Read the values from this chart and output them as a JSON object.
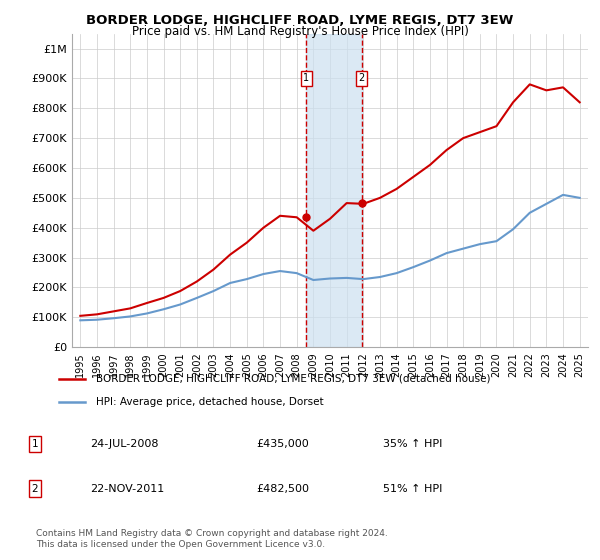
{
  "title": "BORDER LODGE, HIGHCLIFF ROAD, LYME REGIS, DT7 3EW",
  "subtitle": "Price paid vs. HM Land Registry's House Price Index (HPI)",
  "legend_line1": "BORDER LODGE, HIGHCLIFF ROAD, LYME REGIS, DT7 3EW (detached house)",
  "legend_line2": "HPI: Average price, detached house, Dorset",
  "footnote": "Contains HM Land Registry data © Crown copyright and database right 2024.\nThis data is licensed under the Open Government Licence v3.0.",
  "table": [
    {
      "num": "1",
      "date": "24-JUL-2008",
      "price": "£435,000",
      "hpi": "35% ↑ HPI"
    },
    {
      "num": "2",
      "date": "22-NOV-2011",
      "price": "£482,500",
      "hpi": "51% ↑ HPI"
    }
  ],
  "sale1_year": 2008.56,
  "sale1_price": 435000,
  "sale2_year": 2011.9,
  "sale2_price": 482500,
  "red_color": "#cc0000",
  "blue_color": "#6699cc",
  "shade_color": "#cce0f0",
  "vline_color": "#cc0000",
  "grid_color": "#cccccc",
  "ylim": [
    0,
    1050000
  ],
  "xlim_start": 1994.5,
  "xlim_end": 2025.5,
  "hpi_years": [
    1995,
    1996,
    1997,
    1998,
    1999,
    2000,
    2001,
    2002,
    2003,
    2004,
    2005,
    2006,
    2007,
    2008,
    2009,
    2010,
    2011,
    2012,
    2013,
    2014,
    2015,
    2016,
    2017,
    2018,
    2019,
    2020,
    2021,
    2022,
    2023,
    2024,
    2025
  ],
  "hpi_values": [
    90000,
    92000,
    97000,
    103000,
    113000,
    127000,
    143000,
    165000,
    188000,
    215000,
    228000,
    245000,
    255000,
    248000,
    225000,
    230000,
    232000,
    228000,
    235000,
    248000,
    268000,
    290000,
    315000,
    330000,
    345000,
    355000,
    395000,
    450000,
    480000,
    510000,
    500000
  ],
  "red_years": [
    1995,
    1996,
    1997,
    1998,
    1999,
    2000,
    2001,
    2002,
    2003,
    2004,
    2005,
    2006,
    2007,
    2008,
    2009,
    2010,
    2011,
    2012,
    2013,
    2014,
    2015,
    2016,
    2017,
    2018,
    2019,
    2020,
    2021,
    2022,
    2023,
    2024,
    2025
  ],
  "red_values": [
    105000,
    110000,
    120000,
    130000,
    148000,
    165000,
    188000,
    220000,
    260000,
    310000,
    350000,
    400000,
    440000,
    435000,
    390000,
    430000,
    482500,
    480000,
    500000,
    530000,
    570000,
    610000,
    660000,
    700000,
    720000,
    740000,
    820000,
    880000,
    860000,
    870000,
    820000
  ]
}
